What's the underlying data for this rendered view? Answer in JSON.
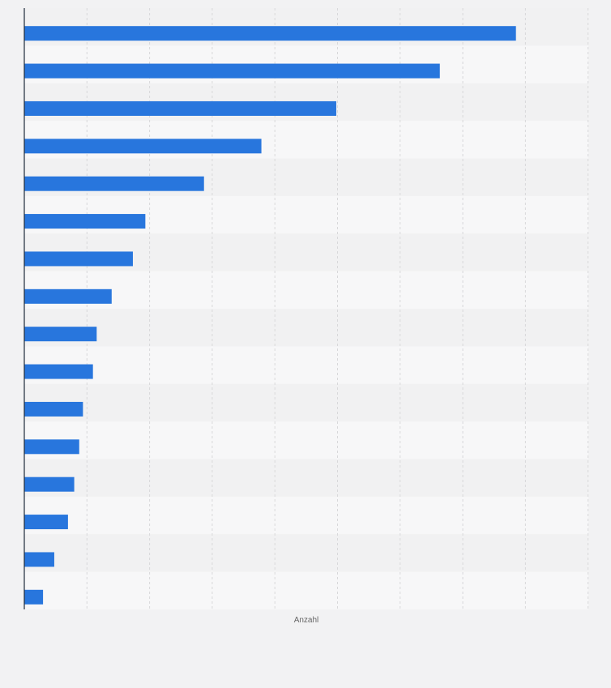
{
  "chart_data": {
    "type": "bar",
    "orientation": "horizontal",
    "title": "",
    "xlabel": "Anzahl",
    "ylabel": "",
    "categories": [
      "",
      "",
      "",
      "",
      "",
      "",
      "",
      "",
      "",
      "",
      "",
      "",
      "",
      "",
      "",
      ""
    ],
    "values": [
      394,
      333,
      250,
      190,
      144,
      97,
      87,
      70,
      58,
      55,
      47,
      44,
      40,
      35,
      24,
      15
    ],
    "xlim": [
      0,
      452
    ],
    "x_grid_step": 50.2,
    "grid": true,
    "legend": "none",
    "colors": {
      "bar": "#2876dd",
      "band_light": "#f7f7f8",
      "band_dark": "#f1f1f2",
      "gridline": "#d8d8da",
      "axis": "#1f2b3a",
      "background": "#f2f2f3"
    }
  }
}
